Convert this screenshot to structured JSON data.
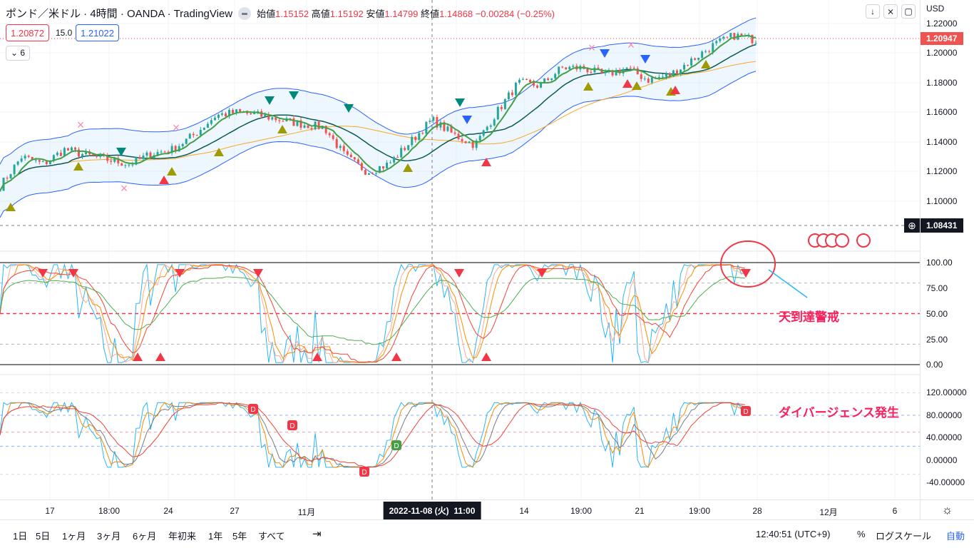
{
  "header": {
    "title": "ポンド／米ドル · 4時間 · OANDA · TradingView",
    "open_label": "始値",
    "open": "1.15152",
    "high_label": "高値",
    "high": "1.15192",
    "low_label": "安値",
    "low": "1.14799",
    "close_label": "終値",
    "close": "1.14868",
    "change": "−0.00284 (−0.25%)"
  },
  "quote": {
    "bid": "1.20872",
    "spread": "15.0",
    "ask": "1.21022",
    "indicators_count": "6"
  },
  "price_axis": {
    "currency": "USD",
    "ticks": [
      "1.22000",
      "1.20000",
      "1.18000",
      "1.16000",
      "1.14000",
      "1.12000",
      "1.10000"
    ],
    "last_price": "1.20947",
    "crosshair_price": "1.08431"
  },
  "osc_axis": {
    "ticks": [
      "100.00",
      "75.00",
      "50.00",
      "25.00",
      "0.00"
    ]
  },
  "lower_axis": {
    "ticks": [
      "120.00000",
      "80.00000",
      "40.00000",
      "0.00000",
      "-40.00000"
    ]
  },
  "time_axis": {
    "labels": [
      "17",
      "18:00",
      "24",
      "27",
      "11月",
      "14",
      "19:00",
      "21",
      "19:00",
      "28",
      "12月",
      "6"
    ],
    "crosshair": "2022-11-08 (火)  11:00"
  },
  "annotations": {
    "osc": "天到達警戒",
    "divergence": "ダイバージェンス発生"
  },
  "toolbar": {
    "ranges": [
      "1日",
      "5日",
      "1ヶ月",
      "3ヶ月",
      "6ヶ月",
      "年初来",
      "1年",
      "5年",
      "すべて"
    ],
    "clock": "12:40:51 (UTC+9)",
    "percent": "%",
    "log": "ログスケール",
    "auto": "自動"
  },
  "colors": {
    "up": "#26a69a",
    "down": "#ef5350",
    "band": "#2962ff",
    "accent": "#2962ff",
    "alert": "#f7215d"
  },
  "chart_data": {
    "type": "candlestick",
    "price_path": [
      1.11,
      1.13,
      1.125,
      1.135,
      1.131,
      1.128,
      1.125,
      1.132,
      1.135,
      1.145,
      1.158,
      1.16,
      1.158,
      1.155,
      1.152,
      1.15,
      1.13,
      1.12,
      1.125,
      1.14,
      1.155,
      1.145,
      1.138,
      1.16,
      1.18,
      1.178,
      1.19,
      1.19,
      1.185,
      1.19,
      1.182,
      1.185,
      1.195,
      1.205,
      1.212,
      1.209
    ]
  }
}
